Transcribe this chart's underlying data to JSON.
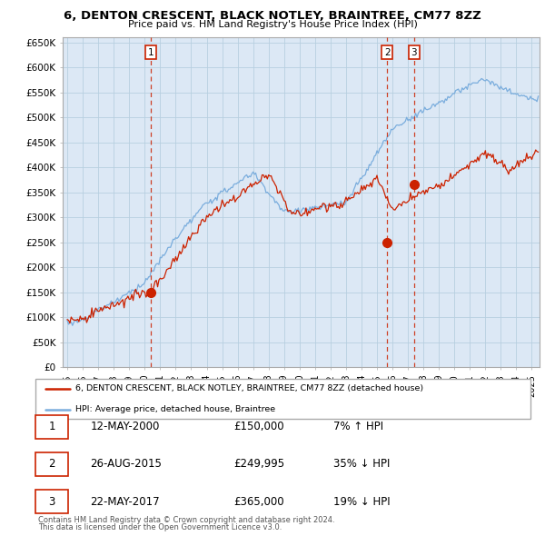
{
  "title": "6, DENTON CRESCENT, BLACK NOTLEY, BRAINTREE, CM77 8ZZ",
  "subtitle": "Price paid vs. HM Land Registry's House Price Index (HPI)",
  "ylim": [
    0,
    660000
  ],
  "yticks": [
    0,
    50000,
    100000,
    150000,
    200000,
    250000,
    300000,
    350000,
    400000,
    450000,
    500000,
    550000,
    600000,
    650000
  ],
  "ytick_labels": [
    "£0",
    "£50K",
    "£100K",
    "£150K",
    "£200K",
    "£250K",
    "£300K",
    "£350K",
    "£400K",
    "£450K",
    "£500K",
    "£550K",
    "£600K",
    "£650K"
  ],
  "line_color_red": "#cc2200",
  "line_color_blue": "#7aaddd",
  "vline_color": "#cc2200",
  "transactions": [
    {
      "date_num": 2000.37,
      "price": 150000,
      "label": "1"
    },
    {
      "date_num": 2015.65,
      "price": 249995,
      "label": "2"
    },
    {
      "date_num": 2017.39,
      "price": 365000,
      "label": "3"
    }
  ],
  "legend_entries": [
    "6, DENTON CRESCENT, BLACK NOTLEY, BRAINTREE, CM77 8ZZ (detached house)",
    "HPI: Average price, detached house, Braintree"
  ],
  "table_rows": [
    {
      "num": "1",
      "date": "12-MAY-2000",
      "price": "£150,000",
      "hpi": "7% ↑ HPI"
    },
    {
      "num": "2",
      "date": "26-AUG-2015",
      "price": "£249,995",
      "hpi": "35% ↓ HPI"
    },
    {
      "num": "3",
      "date": "22-MAY-2017",
      "price": "£365,000",
      "hpi": "19% ↓ HPI"
    }
  ],
  "footnote1": "Contains HM Land Registry data © Crown copyright and database right 2024.",
  "footnote2": "This data is licensed under the Open Government Licence v3.0.",
  "chart_bg": "#dce8f5",
  "grid_color": "#b8cfe0",
  "fig_bg": "#ffffff"
}
